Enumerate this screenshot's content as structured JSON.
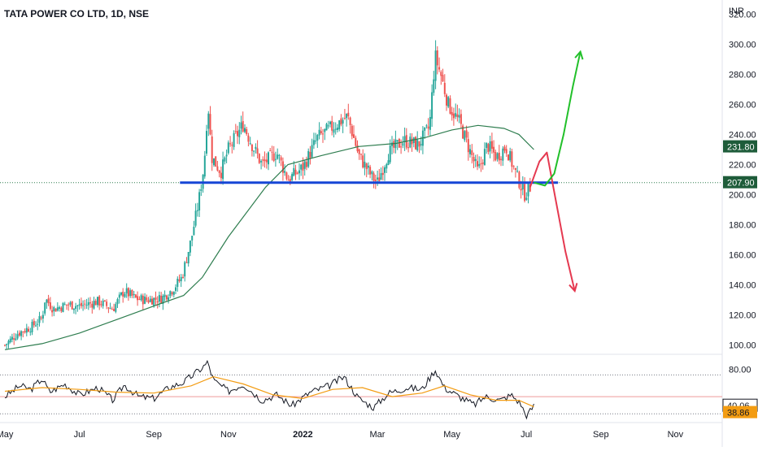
{
  "header": {
    "title": "TATA POWER CO LTD, 1D, NSE",
    "currency": "INR"
  },
  "colors": {
    "up": "#26a69a",
    "down": "#ef5350",
    "ma": "#2e7d4f",
    "support": "#1646d6",
    "rsi": "#131722",
    "rsi_ma": "#f39c12",
    "arrow_up": "#22c02a",
    "arrow_down": "#e53950",
    "price_tag": "#1e5c3a",
    "ma_tag": "#1e5c3a",
    "rsi_tag": "#ffffff",
    "rsi_ma_tag": "#f39c12"
  },
  "chart_data": [
    {
      "type": "candlestick",
      "title": "TATA POWER CO LTD, 1D, NSE",
      "ylabel": "INR",
      "ylim": [
        95,
        325
      ],
      "yticks": [
        "100.00",
        "120.00",
        "140.00",
        "160.00",
        "180.00",
        "200.00",
        "220.00",
        "240.00",
        "260.00",
        "280.00",
        "300.00",
        "320.00"
      ],
      "x_labels": [
        {
          "text": "May",
          "month": 0,
          "bold": false
        },
        {
          "text": "Jul",
          "month": 2,
          "bold": false
        },
        {
          "text": "Sep",
          "month": 4,
          "bold": false
        },
        {
          "text": "Nov",
          "month": 6,
          "bold": false
        },
        {
          "text": "2022",
          "month": 8,
          "bold": true
        },
        {
          "text": "Mar",
          "month": 10,
          "bold": false
        },
        {
          "text": "May",
          "month": 12,
          "bold": false
        },
        {
          "text": "Jul",
          "month": 14,
          "bold": false
        },
        {
          "text": "Sep",
          "month": 16,
          "bold": false
        },
        {
          "text": "Nov",
          "month": 18,
          "bold": false
        }
      ],
      "close_path": [
        {
          "m": 0.0,
          "p": 100
        },
        {
          "m": 0.35,
          "p": 108
        },
        {
          "m": 0.7,
          "p": 112
        },
        {
          "m": 1.0,
          "p": 118
        },
        {
          "m": 1.08,
          "p": 131
        },
        {
          "m": 1.3,
          "p": 124
        },
        {
          "m": 1.7,
          "p": 127
        },
        {
          "m": 2.0,
          "p": 126
        },
        {
          "m": 2.5,
          "p": 129
        },
        {
          "m": 2.9,
          "p": 124
        },
        {
          "m": 3.2,
          "p": 136
        },
        {
          "m": 3.5,
          "p": 131
        },
        {
          "m": 3.8,
          "p": 130
        },
        {
          "m": 4.2,
          "p": 131
        },
        {
          "m": 4.5,
          "p": 137
        },
        {
          "m": 4.75,
          "p": 145
        },
        {
          "m": 5.0,
          "p": 170
        },
        {
          "m": 5.2,
          "p": 195
        },
        {
          "m": 5.35,
          "p": 220
        },
        {
          "m": 5.45,
          "p": 262
        },
        {
          "m": 5.55,
          "p": 225
        },
        {
          "m": 5.8,
          "p": 215
        },
        {
          "m": 6.0,
          "p": 230
        },
        {
          "m": 6.4,
          "p": 247
        },
        {
          "m": 6.6,
          "p": 235
        },
        {
          "m": 6.9,
          "p": 220
        },
        {
          "m": 7.3,
          "p": 228
        },
        {
          "m": 7.6,
          "p": 210
        },
        {
          "m": 8.0,
          "p": 218
        },
        {
          "m": 8.4,
          "p": 238
        },
        {
          "m": 8.8,
          "p": 245
        },
        {
          "m": 9.2,
          "p": 252
        },
        {
          "m": 9.5,
          "p": 226
        },
        {
          "m": 9.85,
          "p": 212
        },
        {
          "m": 10.0,
          "p": 208
        },
        {
          "m": 10.3,
          "p": 228
        },
        {
          "m": 10.7,
          "p": 236
        },
        {
          "m": 11.1,
          "p": 233
        },
        {
          "m": 11.4,
          "p": 245
        },
        {
          "m": 11.55,
          "p": 292
        },
        {
          "m": 11.7,
          "p": 280
        },
        {
          "m": 11.9,
          "p": 260
        },
        {
          "m": 12.2,
          "p": 248
        },
        {
          "m": 12.5,
          "p": 228
        },
        {
          "m": 12.7,
          "p": 215
        },
        {
          "m": 12.95,
          "p": 233
        },
        {
          "m": 13.2,
          "p": 225
        },
        {
          "m": 13.45,
          "p": 232
        },
        {
          "m": 13.7,
          "p": 215
        },
        {
          "m": 13.95,
          "p": 200
        },
        {
          "m": 14.1,
          "p": 205
        }
      ],
      "moving_average": [
        {
          "m": 0.0,
          "p": 97
        },
        {
          "m": 1.0,
          "p": 101
        },
        {
          "m": 2.0,
          "p": 108
        },
        {
          "m": 3.0,
          "p": 117
        },
        {
          "m": 4.0,
          "p": 126
        },
        {
          "m": 4.8,
          "p": 133
        },
        {
          "m": 5.3,
          "p": 145
        },
        {
          "m": 6.0,
          "p": 172
        },
        {
          "m": 7.0,
          "p": 205
        },
        {
          "m": 7.6,
          "p": 220
        },
        {
          "m": 8.5,
          "p": 226
        },
        {
          "m": 9.5,
          "p": 232
        },
        {
          "m": 10.5,
          "p": 234
        },
        {
          "m": 11.3,
          "p": 238
        },
        {
          "m": 12.0,
          "p": 243
        },
        {
          "m": 12.7,
          "p": 246
        },
        {
          "m": 13.4,
          "p": 244
        },
        {
          "m": 13.8,
          "p": 240
        },
        {
          "m": 14.2,
          "p": 230
        }
      ],
      "support_level": 208,
      "last_price": "207.90",
      "ma_value": "231.80",
      "annotations": {
        "projection_down": [
          {
            "m": 14.1,
            "p": 205
          },
          {
            "m": 14.35,
            "p": 222
          },
          {
            "m": 14.55,
            "p": 228
          },
          {
            "m": 14.8,
            "p": 195
          },
          {
            "m": 15.05,
            "p": 162
          },
          {
            "m": 15.3,
            "p": 136
          }
        ],
        "projection_up": [
          {
            "m": 14.2,
            "p": 208
          },
          {
            "m": 14.5,
            "p": 206
          },
          {
            "m": 14.75,
            "p": 214
          },
          {
            "m": 15.0,
            "p": 240
          },
          {
            "m": 15.25,
            "p": 272
          },
          {
            "m": 15.45,
            "p": 295
          }
        ]
      }
    },
    {
      "type": "line",
      "title": "",
      "ylim": [
        25,
        95
      ],
      "yticks": [
        "80.00"
      ],
      "bands": [
        74,
        50,
        31
      ],
      "rsi": [
        {
          "m": 0.0,
          "v": 50
        },
        {
          "m": 0.4,
          "v": 62
        },
        {
          "m": 0.7,
          "v": 58
        },
        {
          "m": 1.0,
          "v": 70
        },
        {
          "m": 1.2,
          "v": 55
        },
        {
          "m": 1.6,
          "v": 64
        },
        {
          "m": 2.0,
          "v": 52
        },
        {
          "m": 2.5,
          "v": 60
        },
        {
          "m": 2.9,
          "v": 46
        },
        {
          "m": 3.2,
          "v": 63
        },
        {
          "m": 3.6,
          "v": 50
        },
        {
          "m": 4.0,
          "v": 48
        },
        {
          "m": 4.4,
          "v": 60
        },
        {
          "m": 4.8,
          "v": 66
        },
        {
          "m": 5.3,
          "v": 82
        },
        {
          "m": 5.45,
          "v": 88
        },
        {
          "m": 5.6,
          "v": 68
        },
        {
          "m": 6.0,
          "v": 56
        },
        {
          "m": 6.4,
          "v": 64
        },
        {
          "m": 6.9,
          "v": 46
        },
        {
          "m": 7.3,
          "v": 52
        },
        {
          "m": 7.7,
          "v": 40
        },
        {
          "m": 8.2,
          "v": 55
        },
        {
          "m": 8.7,
          "v": 62
        },
        {
          "m": 9.1,
          "v": 72
        },
        {
          "m": 9.5,
          "v": 48
        },
        {
          "m": 9.9,
          "v": 38
        },
        {
          "m": 10.3,
          "v": 54
        },
        {
          "m": 10.8,
          "v": 60
        },
        {
          "m": 11.2,
          "v": 58
        },
        {
          "m": 11.55,
          "v": 80
        },
        {
          "m": 11.8,
          "v": 60
        },
        {
          "m": 12.2,
          "v": 50
        },
        {
          "m": 12.6,
          "v": 41
        },
        {
          "m": 12.9,
          "v": 50
        },
        {
          "m": 13.3,
          "v": 46
        },
        {
          "m": 13.6,
          "v": 52
        },
        {
          "m": 13.85,
          "v": 42
        },
        {
          "m": 14.0,
          "v": 28
        },
        {
          "m": 14.2,
          "v": 40
        }
      ],
      "rsi_ma": [
        {
          "m": 0.0,
          "v": 56
        },
        {
          "m": 1.0,
          "v": 60
        },
        {
          "m": 2.0,
          "v": 58
        },
        {
          "m": 3.0,
          "v": 55
        },
        {
          "m": 4.0,
          "v": 54
        },
        {
          "m": 5.0,
          "v": 62
        },
        {
          "m": 5.6,
          "v": 72
        },
        {
          "m": 6.4,
          "v": 64
        },
        {
          "m": 7.2,
          "v": 52
        },
        {
          "m": 8.0,
          "v": 48
        },
        {
          "m": 8.8,
          "v": 58
        },
        {
          "m": 9.6,
          "v": 60
        },
        {
          "m": 10.4,
          "v": 50
        },
        {
          "m": 11.2,
          "v": 54
        },
        {
          "m": 11.8,
          "v": 62
        },
        {
          "m": 12.5,
          "v": 52
        },
        {
          "m": 13.2,
          "v": 46
        },
        {
          "m": 13.8,
          "v": 46
        },
        {
          "m": 14.2,
          "v": 38.86
        }
      ],
      "rsi_value": "40.06",
      "rsi_ma_value": "38.86"
    }
  ]
}
